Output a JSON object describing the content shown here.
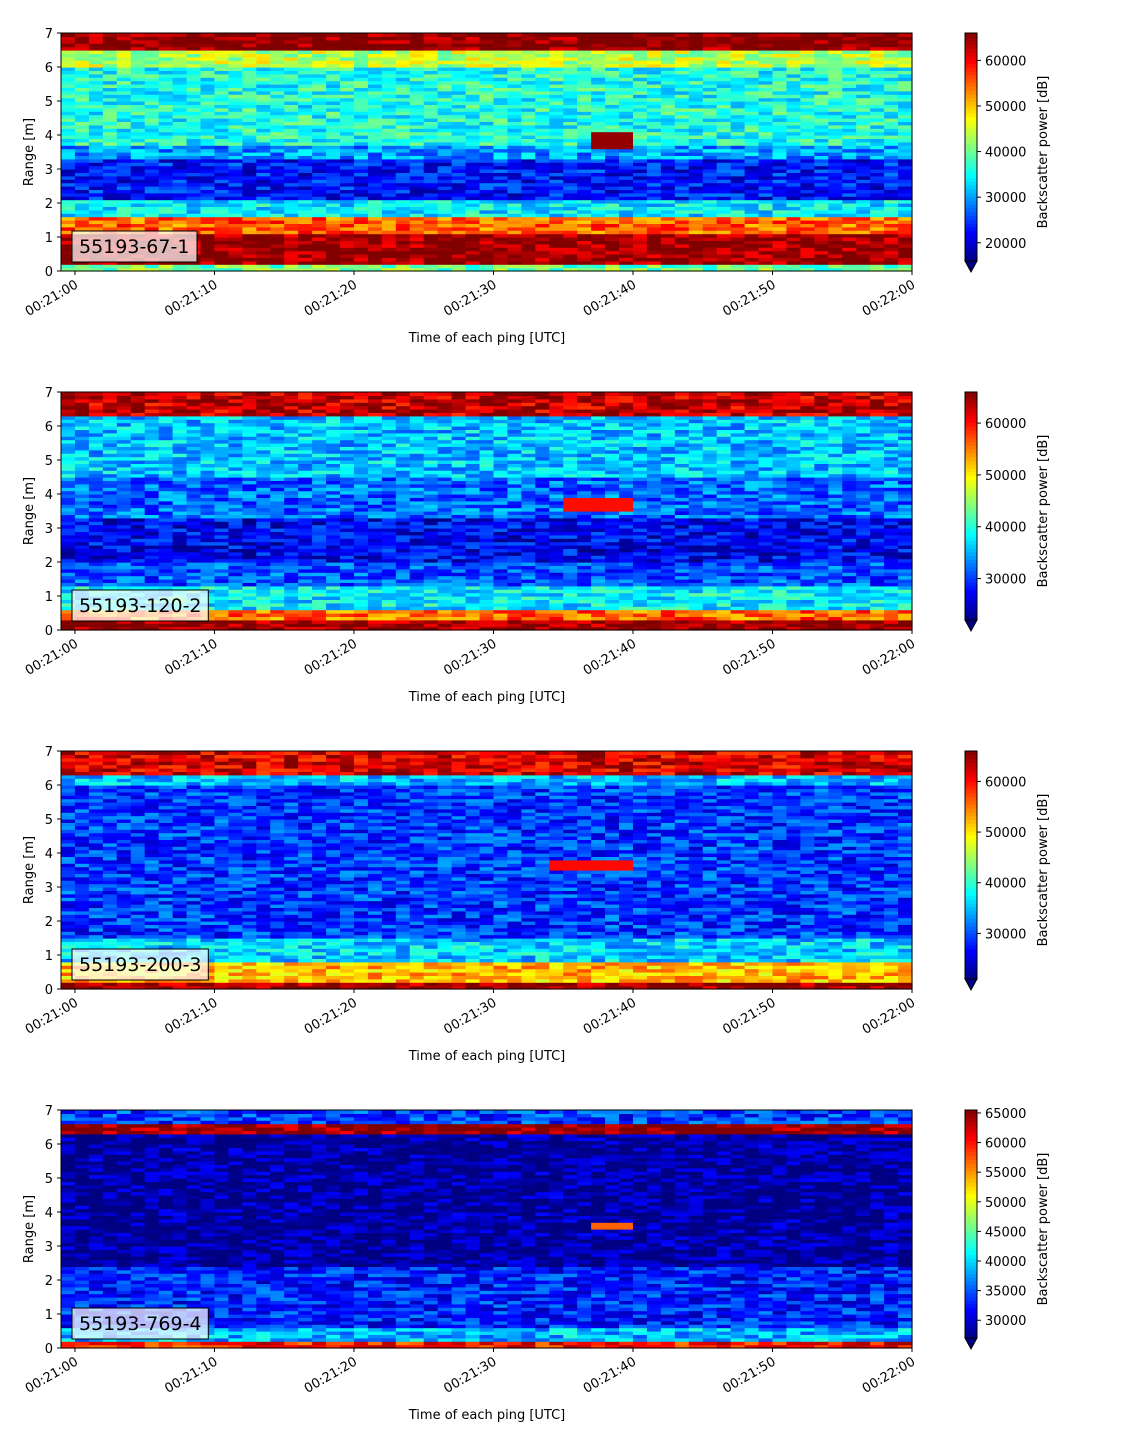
{
  "chart_data": [
    {
      "type": "heatmap",
      "label": "55193-67-1",
      "xlabel": "Time of each ping [UTC]",
      "ylabel": "Range [m]",
      "x_ticks": [
        "00:21:00",
        "00:21:10",
        "00:21:20",
        "00:21:30",
        "00:21:40",
        "00:21:50",
        "00:22:00"
      ],
      "y_ticks": [
        0,
        1,
        2,
        3,
        4,
        5,
        6,
        7
      ],
      "xlim": [
        "00:20:59",
        "00:22:00"
      ],
      "ylim": [
        0,
        7
      ],
      "colorbar": {
        "label": "Backscatter power [dB]",
        "range": [
          16000,
          66000
        ],
        "ticks": [
          20000,
          30000,
          40000,
          50000,
          60000
        ]
      },
      "profile": {
        "bands": [
          {
            "range": [
              0,
              0.2
            ],
            "value": 40000
          },
          {
            "range": [
              0.2,
              1.15
            ],
            "value": 65000
          },
          {
            "range": [
              1.15,
              1.6
            ],
            "value": 55000
          },
          {
            "range": [
              1.6,
              2.1
            ],
            "value": 34000
          },
          {
            "range": [
              2.1,
              3.3
            ],
            "value": 23000
          },
          {
            "range": [
              3.3,
              3.7
            ],
            "value": 30000
          },
          {
            "range": [
              3.7,
              6.0
            ],
            "value": 36000
          },
          {
            "range": [
              6.0,
              6.5
            ],
            "value": 44000
          },
          {
            "range": [
              6.5,
              7.0
            ],
            "value": 66000
          }
        ],
        "target": {
          "time": [
            "00:21:37",
            "00:21:40"
          ],
          "range": [
            3.6,
            4.1
          ],
          "value": 65000
        }
      }
    },
    {
      "type": "heatmap",
      "label": "55193-120-2",
      "xlabel": "Time of each ping [UTC]",
      "ylabel": "Range [m]",
      "x_ticks": [
        "00:21:00",
        "00:21:10",
        "00:21:20",
        "00:21:30",
        "00:21:40",
        "00:21:50",
        "00:22:00"
      ],
      "y_ticks": [
        0,
        1,
        2,
        3,
        4,
        5,
        6,
        7
      ],
      "xlim": [
        "00:20:59",
        "00:22:00"
      ],
      "ylim": [
        0,
        7
      ],
      "colorbar": {
        "label": "Backscatter power [dB]",
        "range": [
          22000,
          66000
        ],
        "ticks": [
          30000,
          40000,
          50000,
          60000
        ]
      },
      "profile": {
        "bands": [
          {
            "range": [
              0,
              0.35
            ],
            "value": 65000
          },
          {
            "range": [
              0.35,
              0.6
            ],
            "value": 56000
          },
          {
            "range": [
              0.6,
              1.3
            ],
            "value": 38000
          },
          {
            "range": [
              1.3,
              2.0
            ],
            "value": 31000
          },
          {
            "range": [
              2.0,
              3.3
            ],
            "value": 27000
          },
          {
            "range": [
              3.3,
              4.5
            ],
            "value": 32000
          },
          {
            "range": [
              4.5,
              6.3
            ],
            "value": 36000
          },
          {
            "range": [
              6.3,
              7.0
            ],
            "value": 63000
          }
        ],
        "target": {
          "time": [
            "00:21:35",
            "00:21:40"
          ],
          "range": [
            3.5,
            3.9
          ],
          "value": 60000
        }
      }
    },
    {
      "type": "heatmap",
      "label": "55193-200-3",
      "xlabel": "Time of each ping [UTC]",
      "ylabel": "Range [m]",
      "x_ticks": [
        "00:21:00",
        "00:21:10",
        "00:21:20",
        "00:21:30",
        "00:21:40",
        "00:21:50",
        "00:22:00"
      ],
      "y_ticks": [
        0,
        1,
        2,
        3,
        4,
        5,
        6,
        7
      ],
      "xlim": [
        "00:20:59",
        "00:22:00"
      ],
      "ylim": [
        0,
        7
      ],
      "colorbar": {
        "label": "Backscatter power [dB]",
        "range": [
          21000,
          66000
        ],
        "ticks": [
          30000,
          40000,
          50000,
          60000
        ]
      },
      "profile": {
        "bands": [
          {
            "range": [
              0,
              0.25
            ],
            "value": 65000
          },
          {
            "range": [
              0.25,
              0.8
            ],
            "value": 52000
          },
          {
            "range": [
              0.8,
              1.5
            ],
            "value": 36000
          },
          {
            "range": [
              1.5,
              6.0
            ],
            "value": 29000
          },
          {
            "range": [
              6.0,
              6.3
            ],
            "value": 35000
          },
          {
            "range": [
              6.3,
              7.0
            ],
            "value": 62000
          }
        ],
        "target": {
          "time": [
            "00:21:34",
            "00:21:40"
          ],
          "range": [
            3.5,
            3.8
          ],
          "value": 60000
        }
      }
    },
    {
      "type": "heatmap",
      "label": "55193-769-4",
      "xlabel": "Time of each ping [UTC]",
      "ylabel": "Range [m]",
      "x_ticks": [
        "00:21:00",
        "00:21:10",
        "00:21:20",
        "00:21:30",
        "00:21:40",
        "00:21:50",
        "00:22:00"
      ],
      "y_ticks": [
        0,
        1,
        2,
        3,
        4,
        5,
        6,
        7
      ],
      "xlim": [
        "00:20:59",
        "00:22:00"
      ],
      "ylim": [
        0,
        7
      ],
      "colorbar": {
        "label": "Backscatter power [dB]",
        "range": [
          27000,
          65500
        ],
        "ticks": [
          30000,
          35000,
          40000,
          45000,
          50000,
          55000,
          60000,
          65000
        ]
      },
      "profile": {
        "bands": [
          {
            "range": [
              0,
              0.25
            ],
            "value": 60000
          },
          {
            "range": [
              0.25,
              0.6
            ],
            "value": 39000
          },
          {
            "range": [
              0.6,
              2.4
            ],
            "value": 33000
          },
          {
            "range": [
              2.4,
              6.3
            ],
            "value": 28000
          },
          {
            "range": [
              6.3,
              6.6
            ],
            "value": 65000
          },
          {
            "range": [
              6.6,
              7.0
            ],
            "value": 34000
          }
        ],
        "target": {
          "time": [
            "00:21:37",
            "00:21:40"
          ],
          "range": [
            3.5,
            3.7
          ],
          "value": 57000
        }
      }
    }
  ]
}
